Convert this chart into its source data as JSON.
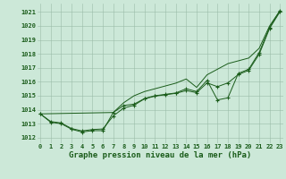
{
  "title": "Graphe pression niveau de la mer (hPa)",
  "hours": [
    0,
    1,
    2,
    3,
    4,
    5,
    6,
    7,
    8,
    9,
    10,
    11,
    12,
    13,
    14,
    15,
    16,
    17,
    18,
    19,
    20,
    21,
    22,
    23
  ],
  "line_jagged": [
    1013.7,
    1013.1,
    1013.0,
    1012.6,
    1012.4,
    1012.5,
    1012.5,
    1013.8,
    1014.3,
    1014.4,
    1014.8,
    1015.0,
    1015.1,
    1015.2,
    1015.5,
    1015.3,
    1016.1,
    1014.7,
    1014.85,
    1016.6,
    1016.9,
    1018.1,
    1019.9,
    1021.1
  ],
  "line_smooth": [
    1013.7,
    1013.15,
    1013.05,
    1012.65,
    1012.48,
    1012.58,
    1012.62,
    1013.55,
    1014.12,
    1014.32,
    1014.78,
    1014.97,
    1015.07,
    1015.17,
    1015.37,
    1015.22,
    1015.92,
    1015.65,
    1015.92,
    1016.52,
    1016.82,
    1017.97,
    1019.82,
    1021.02
  ],
  "line_upper_x": [
    0,
    7,
    8,
    9,
    10,
    11,
    12,
    13,
    14,
    15,
    16,
    17,
    18,
    19,
    20,
    21,
    22,
    23
  ],
  "line_upper_y": [
    1013.7,
    1013.8,
    1014.5,
    1015.0,
    1015.3,
    1015.5,
    1015.7,
    1015.9,
    1016.2,
    1015.6,
    1016.5,
    1016.9,
    1017.3,
    1017.5,
    1017.7,
    1018.4,
    1020.0,
    1021.1
  ],
  "line_color": "#1a5c1a",
  "bg_color": "#cce8d8",
  "grid_color": "#9abca8",
  "yticks": [
    1012,
    1013,
    1014,
    1015,
    1016,
    1017,
    1018,
    1019,
    1020,
    1021
  ],
  "ylim_min": 1011.6,
  "ylim_max": 1021.6,
  "xlim_min": -0.3,
  "xlim_max": 23.3,
  "title_fontsize": 6.5,
  "tick_fontsize": 5.0
}
